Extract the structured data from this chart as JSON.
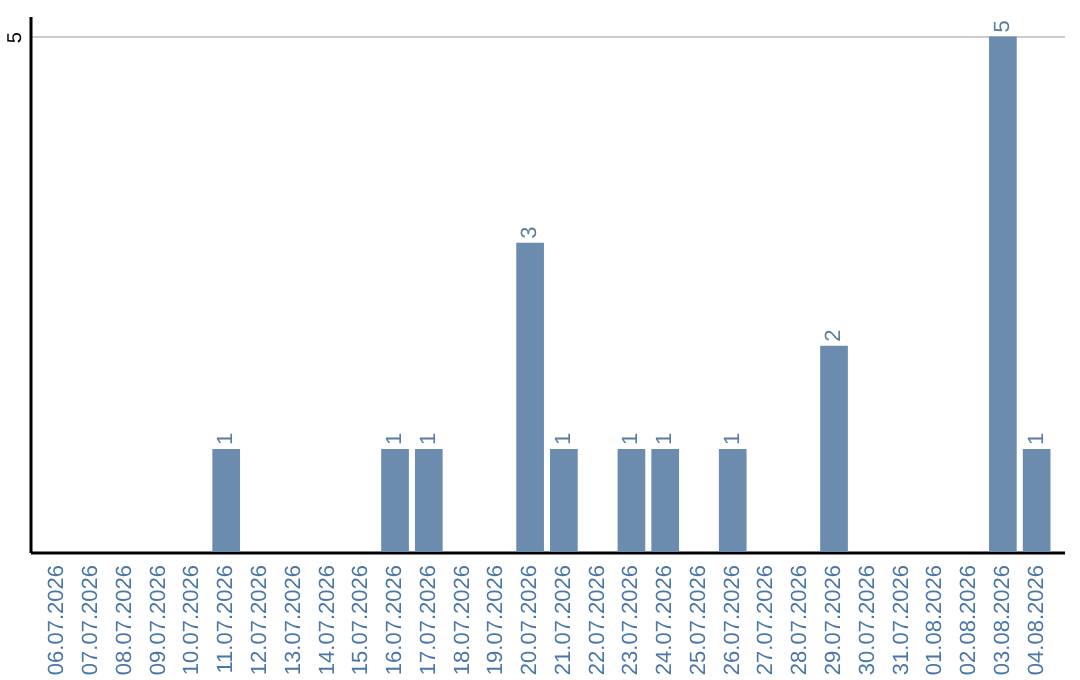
{
  "chart_data": {
    "type": "bar",
    "categories": [
      "06.07.2026",
      "07.07.2026",
      "08.07.2026",
      "09.07.2026",
      "10.07.2026",
      "11.07.2026",
      "12.07.2026",
      "13.07.2026",
      "14.07.2026",
      "15.07.2026",
      "16.07.2026",
      "17.07.2026",
      "18.07.2026",
      "19.07.2026",
      "20.07.2026",
      "21.07.2026",
      "22.07.2026",
      "23.07.2026",
      "24.07.2026",
      "25.07.2026",
      "26.07.2026",
      "27.07.2026",
      "28.07.2026",
      "29.07.2026",
      "30.07.2026",
      "31.07.2026",
      "01.08.2026",
      "02.08.2026",
      "03.08.2026",
      "04.08.2026"
    ],
    "values": [
      0,
      0,
      0,
      0,
      0,
      1,
      0,
      0,
      0,
      0,
      1,
      1,
      0,
      0,
      3,
      1,
      0,
      1,
      1,
      0,
      1,
      0,
      0,
      2,
      0,
      0,
      0,
      0,
      5,
      1
    ],
    "value_labels": [
      null,
      null,
      null,
      null,
      null,
      "1",
      null,
      null,
      null,
      null,
      "1",
      "1",
      null,
      null,
      "3",
      "1",
      null,
      "1",
      "1",
      null,
      "1",
      null,
      null,
      "2",
      null,
      null,
      null,
      null,
      "5",
      "1"
    ],
    "color": "#6b8cae",
    "ylim": [
      0,
      5.2
    ],
    "yticks": [
      5
    ],
    "grid": "y"
  }
}
